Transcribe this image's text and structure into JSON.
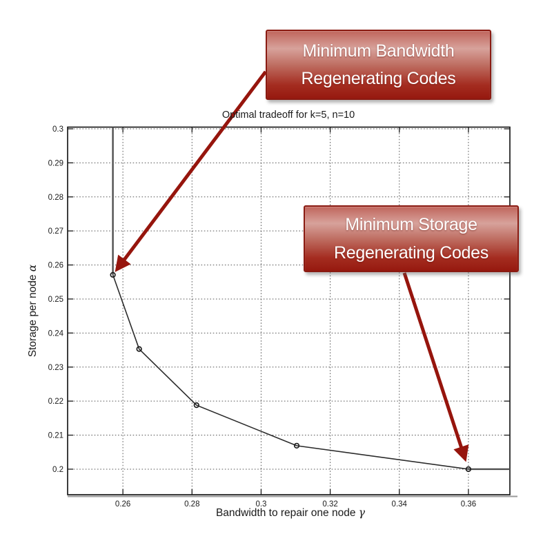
{
  "chart_data": {
    "type": "line",
    "title": "Optimal tradeoff for k=5, n=10",
    "xlabel_text": "Bandwidth to repair one node ",
    "xlabel_symbol": "γ",
    "ylabel_text": "Storage per node ",
    "ylabel_symbol": "α",
    "xlim": [
      0.244,
      0.372
    ],
    "ylim": [
      0.1925,
      0.3005
    ],
    "grid": true,
    "legend": "none",
    "x_ticks": [
      {
        "value": 0.26,
        "label": "0.26"
      },
      {
        "value": 0.28,
        "label": "0.28"
      },
      {
        "value": 0.3,
        "label": "0.3"
      },
      {
        "value": 0.32,
        "label": "0.32"
      },
      {
        "value": 0.34,
        "label": "0.34"
      },
      {
        "value": 0.36,
        "label": "0.36"
      }
    ],
    "y_ticks": [
      {
        "value": 0.2,
        "label": "0.2"
      },
      {
        "value": 0.21,
        "label": "0.21"
      },
      {
        "value": 0.22,
        "label": "0.22"
      },
      {
        "value": 0.23,
        "label": "0.23"
      },
      {
        "value": 0.24,
        "label": "0.24"
      },
      {
        "value": 0.25,
        "label": "0.25"
      },
      {
        "value": 0.26,
        "label": "0.26"
      },
      {
        "value": 0.27,
        "label": "0.27"
      },
      {
        "value": 0.28,
        "label": "0.28"
      },
      {
        "value": 0.29,
        "label": "0.29"
      },
      {
        "value": 0.3,
        "label": "0.3"
      }
    ],
    "series": [
      {
        "name": "optimal-storage-bandwidth-tradeoff",
        "marker": "o",
        "x": [
          0.2571,
          0.2647,
          0.2813,
          0.3103,
          0.36
        ],
        "y": [
          0.2571,
          0.2353,
          0.2188,
          0.2069,
          0.2
        ]
      }
    ],
    "extension_lines": [
      {
        "name": "mbr-vertical-extension",
        "x": [
          0.2571,
          0.2571
        ],
        "y": [
          0.3005,
          0.2571
        ]
      },
      {
        "name": "msr-horizontal-extension",
        "x": [
          0.36,
          0.372
        ],
        "y": [
          0.2,
          0.2
        ]
      }
    ]
  },
  "annotations": [
    {
      "id": "mbr",
      "line1": "Minimum Bandwidth",
      "line2": "Regenerating Codes",
      "target_x": 0.2571,
      "target_y": 0.2571
    },
    {
      "id": "msr",
      "line1": "Minimum Storage",
      "line2": "Regenerating Codes",
      "target_x": 0.36,
      "target_y": 0.2
    }
  ],
  "colors": {
    "arrow": "#96150d",
    "curve": "#2b2b2b",
    "marker_stroke": "#1f1f1f",
    "grid": "#3a3a3a",
    "axis": "#1a1a1a",
    "extension_line": "#4f4f4f",
    "callout_top": "#c0655c",
    "callout_light": "#d7a29b",
    "callout_mid": "#bd6a5e",
    "callout_deep": "#a42c20",
    "callout_bottom": "#96190f",
    "callout_border": "#8a1b12",
    "callout_text": "#ffffff",
    "background": "#ffffff"
  }
}
